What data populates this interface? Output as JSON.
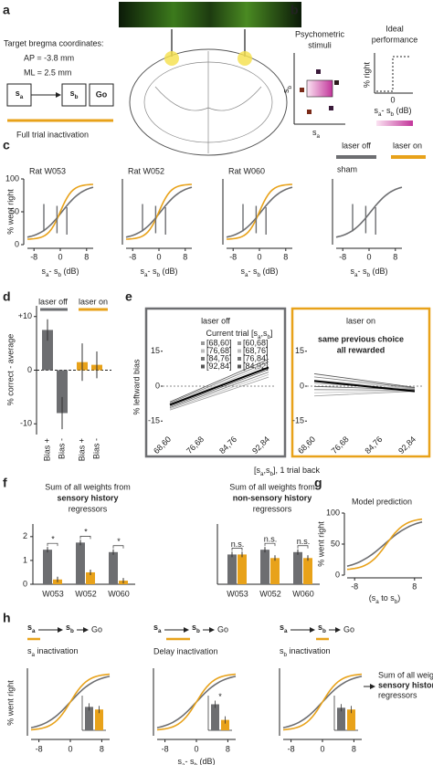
{
  "colors": {
    "laser_off": "#6d6e71",
    "laser_on": "#e8a21a"
  },
  "panel_a": {
    "letter": "a",
    "title": "Target bregma coordinates:",
    "ap": "AP = -3.8 mm",
    "ml": "ML = 2.5 mm",
    "box_a": [
      "s",
      "a"
    ],
    "box_b": [
      "s",
      "b"
    ],
    "box_go": "Go",
    "bar_label": "Full trial inactivation"
  },
  "panel_b": {
    "letter": "b",
    "stim_title": [
      "Psychometric",
      "stimuli"
    ],
    "y_label": [
      "s",
      "b"
    ],
    "x_label": [
      "s",
      "a"
    ],
    "ideal_title": [
      "Ideal",
      "performance"
    ],
    "ideal_ylabel": "% right",
    "ideal_zero": "0",
    "ideal_xlabel": [
      "s",
      "a",
      "- s",
      "b",
      " (dB)"
    ]
  },
  "panel_c": {
    "letter": "c",
    "legend_off": "laser off",
    "legend_on": "laser on",
    "sham": "sham",
    "plots": [
      "Rat W053",
      "Rat W052",
      "Rat W060"
    ],
    "ylabel": "% went right",
    "ylim": [
      0,
      100
    ],
    "yticks": [
      0,
      50,
      100
    ],
    "xlim": [
      -10,
      10
    ],
    "xticks": [
      -8,
      0,
      8
    ],
    "xlabel": [
      "s",
      "a",
      "- s",
      "b",
      " (dB)"
    ]
  },
  "panel_d": {
    "letter": "d",
    "legend": [
      "laser off",
      "laser on"
    ],
    "ylabel": "% correct - average",
    "ylim": [
      -12,
      12
    ],
    "yticks": [
      {
        "value": 10,
        "label": "+10"
      },
      0,
      -10
    ],
    "categories": [
      "Bias +",
      "Bias -",
      "Bias +",
      "Bias -"
    ],
    "category_colors": [
      "#2a9d3a",
      "#e0602a",
      "#2a9d3a",
      "#e0602a"
    ],
    "values": [
      7.5,
      -8,
      1.5,
      1
    ],
    "errors": [
      2,
      3,
      3.5,
      2.5
    ]
  },
  "panel_e": {
    "letter": "e",
    "left_title": "laser off",
    "right_title": "laser on",
    "right_note": [
      "same previous choice",
      "all rewarded"
    ],
    "legend_title": [
      "Current trial [s",
      "a",
      ",s",
      "b",
      "]"
    ],
    "legend": [
      "[68,60]",
      "[76,68]",
      "[84,76]",
      "[92,84]",
      "[60,68]",
      "[68,76]",
      "[76,84]",
      "[84,92]"
    ],
    "ylabel": "% leftward bias",
    "ylim": [
      -20,
      20
    ],
    "yticks": [
      15,
      0,
      -15
    ],
    "categories": [
      "68,60",
      "76,68",
      "84,76",
      "92,84"
    ],
    "xlabel": [
      "[s",
      "a",
      ",s",
      "b",
      "], 1 trial back"
    ]
  },
  "panel_f": {
    "letter": "f",
    "left_title": [
      "Sum of all weights from",
      "sensory history",
      "regressors"
    ],
    "right_title": [
      "Sum of all weights from",
      "non-sensory history",
      "regressors"
    ],
    "ylim": [
      0,
      2.3
    ],
    "yticks": [
      0,
      1,
      2
    ],
    "groups": [
      "W053",
      "W052",
      "W060"
    ],
    "left_values": {
      "off": [
        1.45,
        1.75,
        1.35
      ],
      "on": [
        0.2,
        0.5,
        0.15
      ]
    },
    "right_values": {
      "off": [
        1.25,
        1.45,
        1.35
      ],
      "on": [
        1.25,
        1.1,
        1.1
      ]
    },
    "left_sig": [
      "*",
      "*",
      "*"
    ],
    "right_sig": [
      "n.s.",
      "n.s.",
      "n.s."
    ]
  },
  "panel_g": {
    "letter": "g",
    "title": "Model prediction",
    "ylabel": "% went right",
    "ylim": [
      0,
      100
    ],
    "yticks": [
      0,
      50,
      100
    ],
    "xlim": [
      -10,
      10
    ],
    "xticks": [
      -8,
      8
    ],
    "xlabel": [
      "(s",
      "a",
      " to s",
      "b",
      ")"
    ]
  },
  "panel_h": {
    "letter": "h",
    "schematic": {
      "a": [
        "s",
        "a"
      ],
      "b": [
        "s",
        "b"
      ],
      "go": "Go"
    },
    "titles": [
      [
        "s",
        "a",
        " inactivation"
      ],
      "Delay inactivation",
      [
        "s",
        "b",
        " inactivation"
      ]
    ],
    "ylabel": "% went right",
    "xlim": [
      -10,
      10
    ],
    "xticks": [
      -8,
      0,
      8
    ],
    "xlabel": [
      "s",
      "a",
      "- s",
      "b",
      " (dB)"
    ],
    "inset": {
      "ylim": [
        0,
        2
      ],
      "off": [
        1.35,
        1.5,
        1.3
      ],
      "on": [
        1.2,
        0.6,
        1.2
      ],
      "sig": "*"
    },
    "note": [
      "Sum of all weights from",
      "sensory history",
      "regressors"
    ]
  }
}
